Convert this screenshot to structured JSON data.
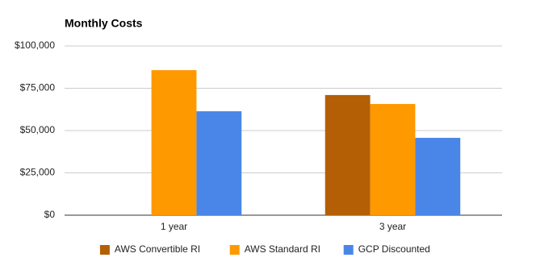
{
  "chart_data": {
    "type": "bar",
    "title": "Monthly Costs",
    "categories": [
      "1 year",
      "3 year"
    ],
    "series": [
      {
        "name": "AWS Convertible RI",
        "color": "#b45f06",
        "values": [
          null,
          71000
        ]
      },
      {
        "name": "AWS Standard RI",
        "color": "#ff9900",
        "values": [
          85700,
          65700
        ]
      },
      {
        "name": "GCP Discounted",
        "color": "#4a86e8",
        "values": [
          61400,
          45700
        ]
      }
    ],
    "ylim": [
      0,
      100000
    ],
    "yticks": [
      {
        "value": 0,
        "label": "$0"
      },
      {
        "value": 25000,
        "label": "$25,000"
      },
      {
        "value": 50000,
        "label": "$50,000"
      },
      {
        "value": 75000,
        "label": "$75,000"
      },
      {
        "value": 100000,
        "label": "$100,000"
      }
    ],
    "grid": true,
    "legend": "bottom"
  }
}
